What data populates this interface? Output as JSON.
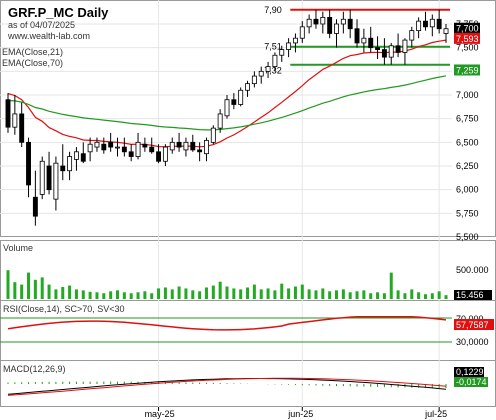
{
  "header": {
    "symbol_title": "GRF.P_MC Daily",
    "as_of": "as of 04/07/2025",
    "source": "www.wealth-lab.com",
    "ema21_label": "EMA(Close,21)",
    "ema70_label": "EMA(Close,70)"
  },
  "chart_data": [
    {
      "type": "candlestick",
      "title": "GRF.P_MC Daily",
      "ylim": [
        5500,
        8000
      ],
      "yticks": [
        "7,750",
        "7,500",
        "7,250",
        "7,000",
        "6,750",
        "6,500",
        "6,250",
        "6,000",
        "5,750",
        "5,500"
      ],
      "xlabels": [
        {
          "label": "may-25",
          "index": 22
        },
        {
          "label": "jun-25",
          "index": 43
        },
        {
          "label": "jul-25",
          "index": 63
        }
      ],
      "ohlc": [
        [
          6.95,
          7.02,
          6.6,
          6.66
        ],
        [
          6.66,
          7.0,
          6.58,
          6.8
        ],
        [
          6.8,
          6.92,
          6.45,
          6.5
        ],
        [
          6.5,
          6.55,
          5.92,
          6.05
        ],
        [
          5.92,
          6.2,
          5.62,
          5.72
        ],
        [
          5.95,
          6.35,
          5.9,
          6.3
        ],
        [
          6.25,
          6.4,
          5.95,
          6.0
        ],
        [
          5.9,
          6.35,
          5.78,
          6.28
        ],
        [
          6.25,
          6.48,
          6.1,
          6.2
        ],
        [
          6.2,
          6.4,
          6.1,
          6.35
        ],
        [
          6.32,
          6.45,
          6.2,
          6.4
        ],
        [
          6.38,
          6.5,
          6.28,
          6.3
        ],
        [
          6.4,
          6.55,
          6.3,
          6.48
        ],
        [
          6.45,
          6.55,
          6.4,
          6.5
        ],
        [
          6.48,
          6.55,
          6.38,
          6.42
        ],
        [
          6.5,
          6.6,
          6.4,
          6.45
        ],
        [
          6.45,
          6.55,
          6.35,
          6.45
        ],
        [
          6.45,
          6.55,
          6.35,
          6.4
        ],
        [
          6.4,
          6.48,
          6.3,
          6.35
        ],
        [
          6.35,
          6.6,
          6.32,
          6.5
        ],
        [
          6.48,
          6.55,
          6.4,
          6.45
        ],
        [
          6.45,
          6.55,
          6.38,
          6.4
        ],
        [
          6.4,
          6.48,
          6.28,
          6.3
        ],
        [
          6.3,
          6.48,
          6.25,
          6.45
        ],
        [
          6.42,
          6.55,
          6.38,
          6.5
        ],
        [
          6.5,
          6.6,
          6.4,
          6.45
        ],
        [
          6.42,
          6.55,
          6.35,
          6.5
        ],
        [
          6.5,
          6.58,
          6.4,
          6.42
        ],
        [
          6.42,
          6.5,
          6.3,
          6.4
        ],
        [
          6.38,
          6.55,
          6.3,
          6.52
        ],
        [
          6.5,
          6.68,
          6.48,
          6.65
        ],
        [
          6.65,
          6.85,
          6.6,
          6.8
        ],
        [
          6.78,
          7.0,
          6.75,
          6.95
        ],
        [
          6.95,
          7.02,
          6.85,
          6.9
        ],
        [
          6.9,
          7.08,
          6.88,
          7.05
        ],
        [
          7.05,
          7.15,
          6.98,
          7.12
        ],
        [
          7.12,
          7.25,
          7.08,
          7.2
        ],
        [
          7.2,
          7.3,
          7.12,
          7.25
        ],
        [
          7.25,
          7.35,
          7.18,
          7.3
        ],
        [
          7.3,
          7.45,
          7.25,
          7.42
        ],
        [
          7.42,
          7.52,
          7.35,
          7.48
        ],
        [
          7.48,
          7.6,
          7.4,
          7.55
        ],
        [
          7.55,
          7.65,
          7.45,
          7.6
        ],
        [
          7.6,
          7.78,
          7.55,
          7.72
        ],
        [
          7.72,
          7.85,
          7.65,
          7.8
        ],
        [
          7.8,
          7.9,
          7.7,
          7.75
        ],
        [
          7.75,
          7.88,
          7.65,
          7.82
        ],
        [
          7.82,
          7.9,
          7.6,
          7.65
        ],
        [
          7.65,
          7.8,
          7.5,
          7.75
        ],
        [
          7.75,
          7.88,
          7.65,
          7.8
        ],
        [
          7.8,
          7.9,
          7.6,
          7.7
        ],
        [
          7.7,
          7.8,
          7.5,
          7.55
        ],
        [
          7.55,
          7.7,
          7.45,
          7.6
        ],
        [
          7.6,
          7.72,
          7.45,
          7.5
        ],
        [
          7.5,
          7.62,
          7.38,
          7.48
        ],
        [
          7.48,
          7.6,
          7.32,
          7.4
        ],
        [
          7.4,
          7.55,
          7.32,
          7.52
        ],
        [
          7.52,
          7.65,
          7.4,
          7.45
        ],
        [
          7.45,
          7.6,
          7.32,
          7.58
        ],
        [
          7.58,
          7.72,
          7.5,
          7.68
        ],
        [
          7.68,
          7.82,
          7.6,
          7.78
        ],
        [
          7.78,
          7.88,
          7.68,
          7.72
        ],
        [
          7.72,
          7.85,
          7.62,
          7.8
        ],
        [
          7.8,
          7.9,
          7.65,
          7.7
        ],
        [
          7.65,
          7.75,
          7.55,
          7.7
        ]
      ],
      "lines": [
        {
          "name": "EMA(Close,21)",
          "color": "#e01010"
        },
        {
          "name": "EMA(Close,70)",
          "color": "#229922"
        }
      ],
      "levels": [
        {
          "value": 7.9,
          "label": "7,90",
          "color": "#e01010"
        },
        {
          "value": 7.51,
          "label": "7,51",
          "color": "#229922"
        },
        {
          "value": 7.32,
          "label": "7,32",
          "color": "#229922"
        }
      ],
      "last_markers": [
        {
          "label": "7,700",
          "bg": "#000000"
        },
        {
          "label": "7,593",
          "bg": "#e01010"
        },
        {
          "label": "7,259",
          "bg": "#229922"
        }
      ]
    },
    {
      "type": "bar",
      "title": "Volume",
      "yticks": [
        "500.000"
      ],
      "last_label": "15.456",
      "color": "#22aa22"
    },
    {
      "type": "line",
      "title": "RSI(Close,14), SC>70, SV<30",
      "yticks": [
        "70,000",
        "30,0000"
      ],
      "last_label": "57,7587",
      "color": "#e01010"
    },
    {
      "type": "line",
      "title": "MACD(12,26,9)",
      "last_labels": [
        "0,1229",
        "-0,0174"
      ],
      "colors": [
        "#000000",
        "#e01010"
      ]
    }
  ]
}
